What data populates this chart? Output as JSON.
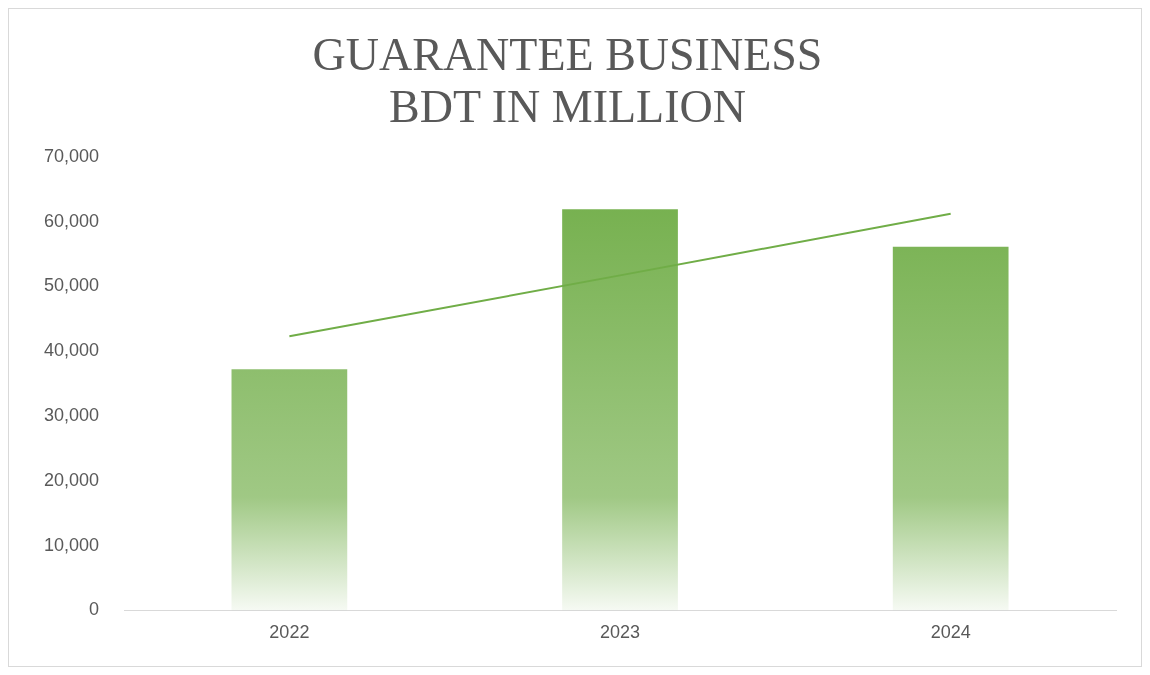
{
  "chart_data": {
    "type": "bar",
    "title": "GUARANTEE BUSINESS\nBDT IN MILLION",
    "categories": [
      "2022",
      "2023",
      "2024"
    ],
    "series": [
      {
        "color": "#70ad47",
        "values": [
          37200,
          61900,
          56100
        ]
      },
      {
        "type": "line",
        "color": "#70ad47",
        "values": [
          42300,
          51700,
          61200
        ],
        "marker": "none"
      }
    ],
    "ylim": [
      0,
      70000
    ],
    "yticks": [
      0,
      {
        "value": 10000,
        "label": "10,000"
      },
      {
        "value": 20000,
        "label": "20,000"
      },
      {
        "value": 30000,
        "label": "30,000"
      },
      {
        "value": 40000,
        "label": "40,000"
      },
      {
        "value": 50000,
        "label": "50,000"
      },
      {
        "value": 60000,
        "label": "60,000"
      },
      {
        "value": 70000,
        "label": "70,000"
      }
    ],
    "grid": false,
    "legend": false
  }
}
